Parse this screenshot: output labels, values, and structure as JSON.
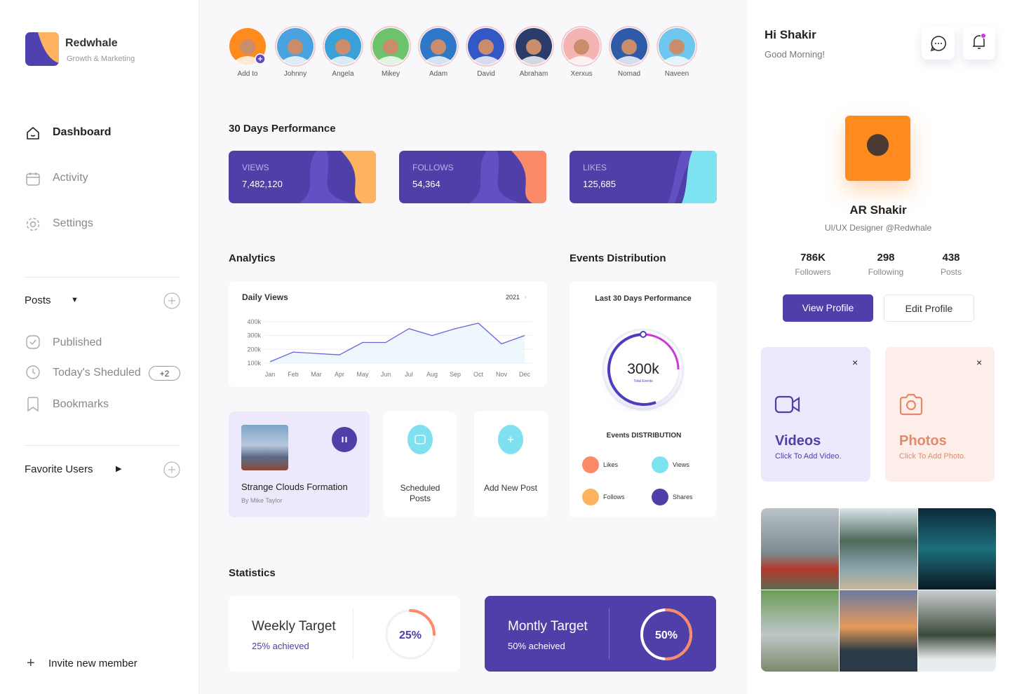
{
  "brand": {
    "name": "Redwhale",
    "tagline": "Growth & Marketing"
  },
  "nav": [
    "Dashboard",
    "Activity",
    "Settings"
  ],
  "posts": {
    "title": "Posts",
    "items": [
      "Published",
      "Today's Sheduled",
      "Bookmarks"
    ],
    "badge": "+2"
  },
  "favorites": {
    "title": "Favorite Users"
  },
  "invite": "Invite new member",
  "stories": [
    "Add to",
    "Johnny",
    "Angela",
    "Mikey",
    "Adam",
    "David",
    "Abraham",
    "Xerxus",
    "Nomad",
    "Naveen"
  ],
  "performance": {
    "title": "30 Days Performance",
    "cards": [
      {
        "label": "VIEWS",
        "value": "7,482,120"
      },
      {
        "label": "FOLLOWS",
        "value": "54,364"
      },
      {
        "label": "LIKES",
        "value": "125,685"
      }
    ]
  },
  "analytics": {
    "title": "Analytics",
    "chart": {
      "type": "line",
      "title": "Daily Views",
      "year": "2021",
      "categories": [
        "Jan",
        "Feb",
        "Mar",
        "Apr",
        "May",
        "Jun",
        "Jul",
        "Aug",
        "Sep",
        "Oct",
        "Nov",
        "Dec"
      ],
      "values": [
        110000,
        180000,
        170000,
        160000,
        250000,
        250000,
        350000,
        300000,
        350000,
        390000,
        240000,
        300000
      ],
      "ylim": [
        100000,
        400000
      ],
      "yticks": [
        {
          "value": 100000,
          "label": "100k"
        },
        {
          "value": 200000,
          "label": "200k"
        },
        {
          "value": 300000,
          "label": "300k"
        },
        {
          "value": 400000,
          "label": "400k"
        }
      ],
      "grid": true,
      "color": "#6c63d8"
    }
  },
  "media": {
    "title": "Strange Clouds Formation",
    "author": "By Mike Taylor"
  },
  "actions": [
    "Scheduled Posts",
    "Add New Post"
  ],
  "events": {
    "title": "Events Distribution",
    "card_title": "Last 30 Days Performance",
    "total": "300k",
    "total_label": "Total Events",
    "subtitle": "Events DISTRIBUTION",
    "legend": [
      "Likes",
      "Views",
      "Follows",
      "Shares"
    ]
  },
  "statistics": {
    "title": "Statistics",
    "items": [
      {
        "title": "Weekly Target",
        "note": "25% achieved",
        "value": 25,
        "value_label": "25%"
      },
      {
        "title": "Montly Target",
        "note": "50% acheived",
        "value": 50,
        "value_label": "50%"
      }
    ]
  },
  "profile": {
    "greeting": "Hi Shakir",
    "subgreeting": "Good Morning!",
    "name": "AR Shakir",
    "role": "UI/UX Designer @Redwhale",
    "stats": [
      {
        "value": "786K",
        "label": "Followers"
      },
      {
        "value": "298",
        "label": "Following"
      },
      {
        "value": "438",
        "label": "Posts"
      }
    ],
    "buttons": [
      "View Profile",
      "Edit Profile"
    ]
  },
  "uploads": [
    {
      "title": "Videos",
      "hint": "Click To Add Video."
    },
    {
      "title": "Photos",
      "hint": "Click To Add Photo."
    }
  ]
}
